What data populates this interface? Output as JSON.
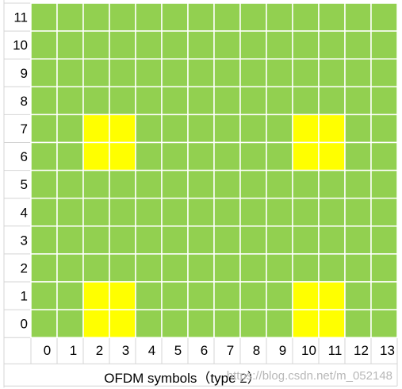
{
  "chart_data": {
    "type": "heatmap",
    "title": "",
    "xlabel": "OFDM symbols（type 2）",
    "ylabel": "",
    "columns": [
      "0",
      "1",
      "2",
      "3",
      "4",
      "5",
      "6",
      "7",
      "8",
      "9",
      "10",
      "11",
      "12",
      "13"
    ],
    "rows": [
      "11",
      "10",
      "9",
      "8",
      "7",
      "6",
      "5",
      "4",
      "3",
      "2",
      "1",
      "0"
    ],
    "colors": {
      "data_re": "#92d050",
      "dmrs_re": "#ffff00",
      "grid_line": "#ffffff",
      "sheet_line": "#d4d4d4",
      "background": "#ffffff"
    },
    "highlighted_cells": [
      {
        "row": "7",
        "col": "2"
      },
      {
        "row": "7",
        "col": "3"
      },
      {
        "row": "6",
        "col": "2"
      },
      {
        "row": "6",
        "col": "3"
      },
      {
        "row": "7",
        "col": "10"
      },
      {
        "row": "7",
        "col": "11"
      },
      {
        "row": "6",
        "col": "10"
      },
      {
        "row": "6",
        "col": "11"
      },
      {
        "row": "1",
        "col": "2"
      },
      {
        "row": "1",
        "col": "3"
      },
      {
        "row": "0",
        "col": "2"
      },
      {
        "row": "0",
        "col": "3"
      },
      {
        "row": "1",
        "col": "10"
      },
      {
        "row": "1",
        "col": "11"
      },
      {
        "row": "0",
        "col": "10"
      },
      {
        "row": "0",
        "col": "11"
      }
    ]
  },
  "watermark": "https://blog.csdn.net/m_052148"
}
